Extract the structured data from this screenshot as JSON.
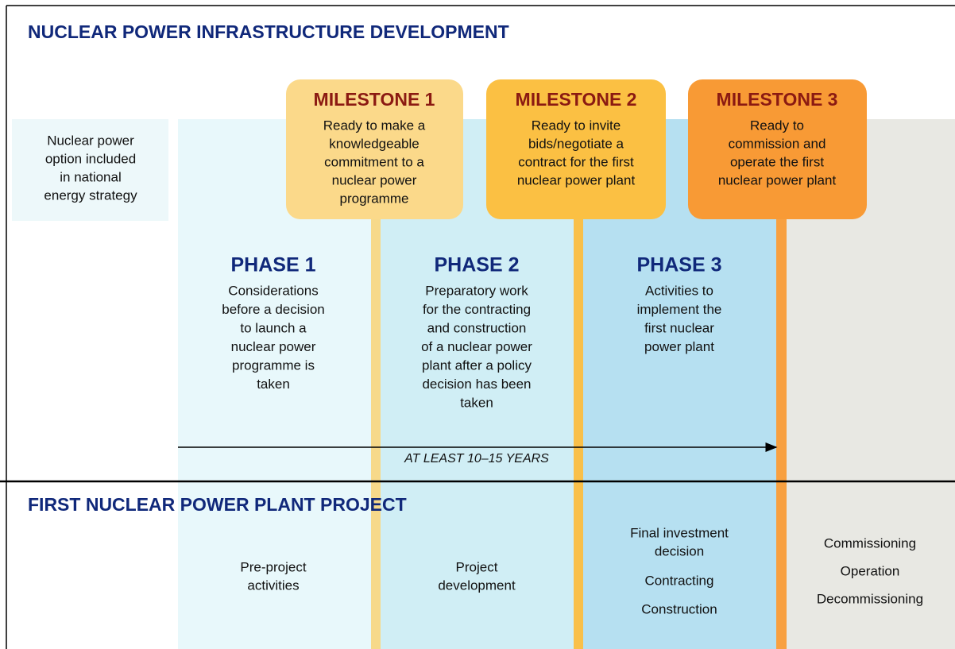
{
  "title": "NUCLEAR POWER INFRASTRUCTURE DEVELOPMENT",
  "start_note": [
    "Nuclear power",
    "option included",
    "in national",
    "energy strategy"
  ],
  "milestones": [
    {
      "title": "MILESTONE 1",
      "lines": [
        "Ready to make a",
        "knowledgeable",
        "commitment to a",
        "nuclear power",
        "programme"
      ]
    },
    {
      "title": "MILESTONE 2",
      "lines": [
        "Ready to invite",
        "bids/negotiate a",
        "contract for the first",
        "nuclear power plant"
      ]
    },
    {
      "title": "MILESTONE 3",
      "lines": [
        "Ready to",
        "commission and",
        "operate the first",
        "nuclear power plant"
      ]
    }
  ],
  "phases": [
    {
      "title": "PHASE 1",
      "lines": [
        "Considerations",
        "before a decision",
        "to launch a",
        "nuclear power",
        "programme is",
        "taken"
      ]
    },
    {
      "title": "PHASE 2",
      "lines": [
        "Preparatory work",
        "for the contracting",
        "and construction",
        "of a nuclear power",
        "plant after a policy",
        "decision has been",
        "taken"
      ]
    },
    {
      "title": "PHASE 3",
      "lines": [
        "Activities to",
        "implement the",
        "first nuclear",
        "power plant"
      ]
    }
  ],
  "duration": "AT LEAST 10–15 YEARS",
  "project": {
    "title": "FIRST NUCLEAR POWER PLANT PROJECT",
    "columns": [
      [
        [
          "Pre-project",
          "activities"
        ]
      ],
      [
        [
          "Project",
          "development"
        ]
      ],
      [
        [
          "Final investment",
          "decision"
        ],
        [
          "Contracting"
        ],
        [
          "Construction"
        ]
      ],
      [
        [
          "Commissioning"
        ],
        [
          "Operation"
        ],
        [
          "Decommissioning"
        ]
      ]
    ]
  }
}
